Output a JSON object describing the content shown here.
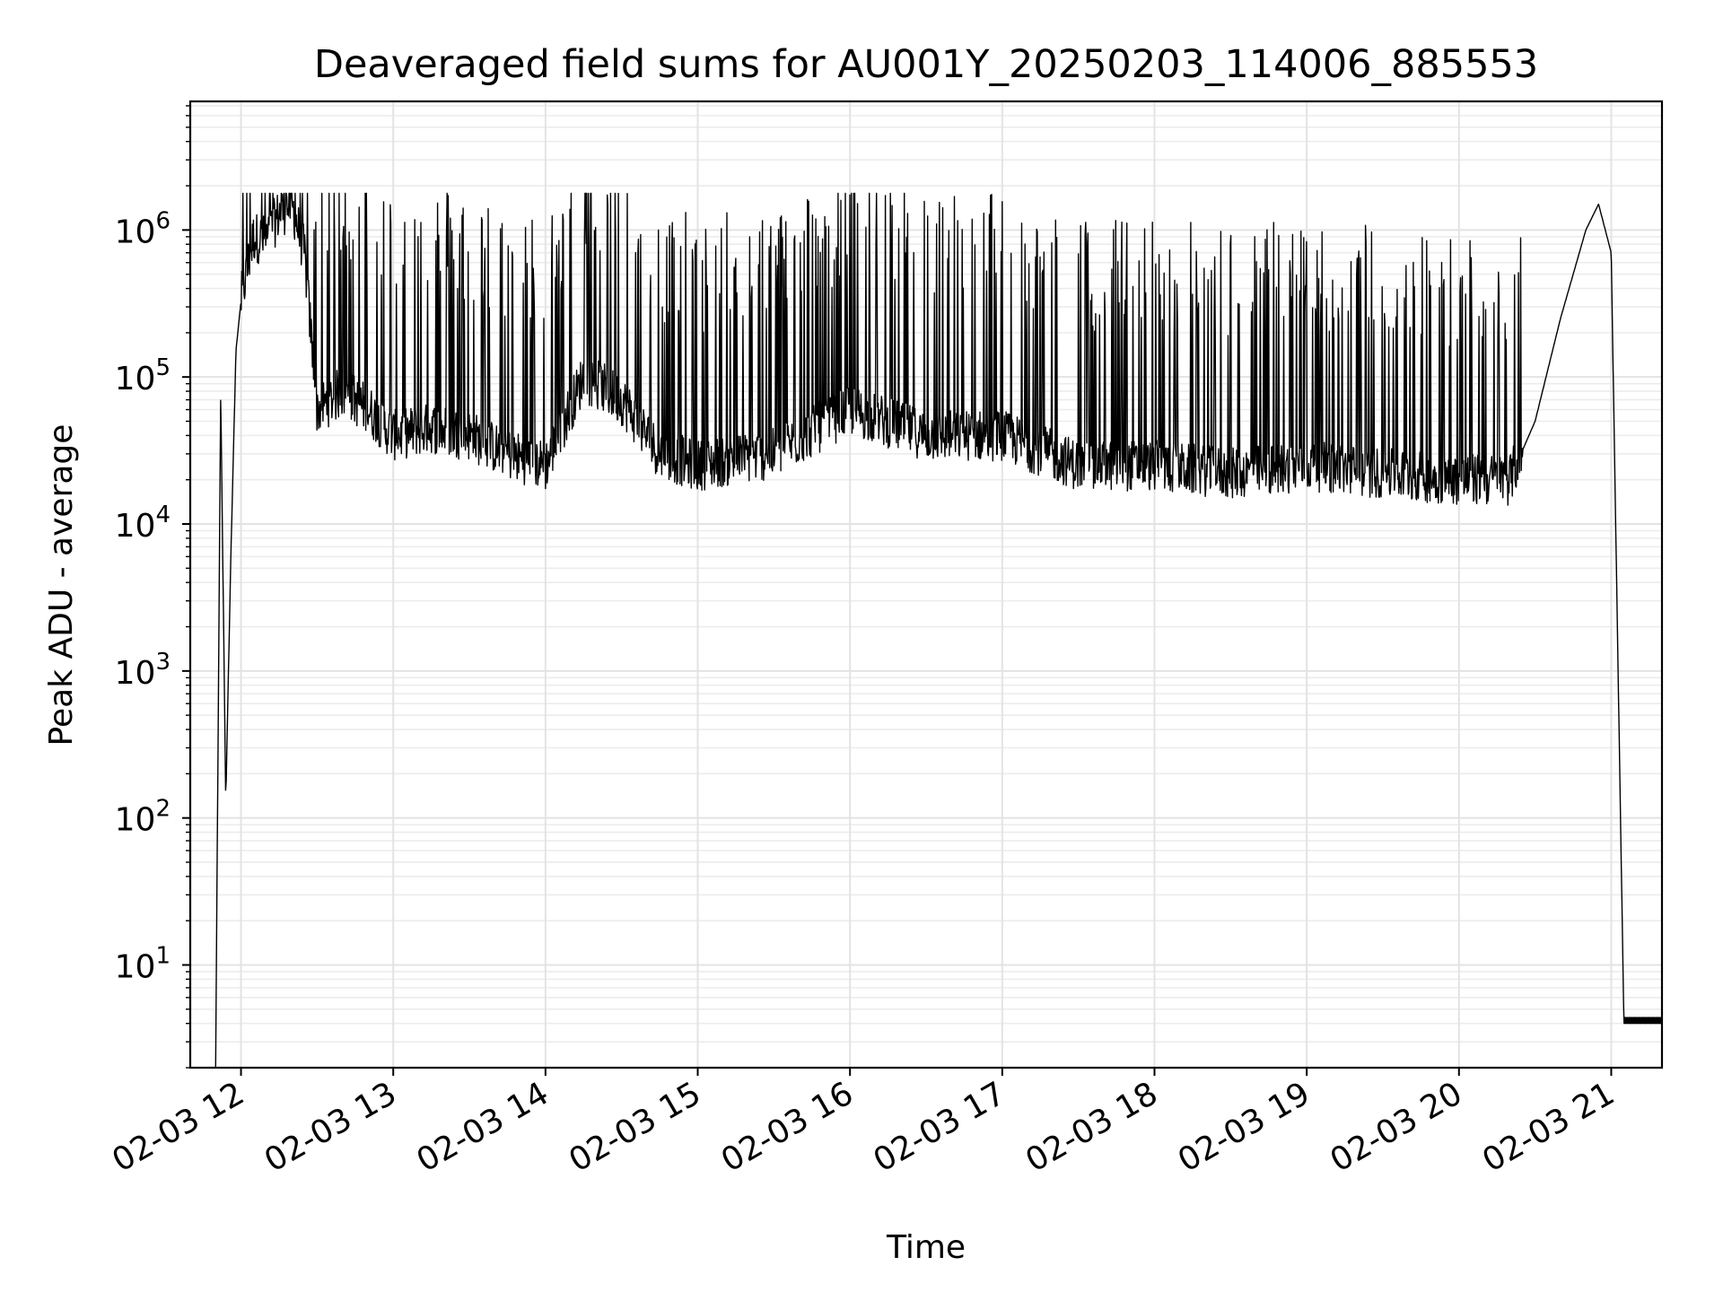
{
  "chart_data": {
    "type": "line",
    "title": "Deaveraged field sums for AU001Y_20250203_114006_885553",
    "xlabel": "Time",
    "ylabel": "Peak ADU - average",
    "yscale": "log",
    "ylim": [
      2,
      7500000
    ],
    "xlim": [
      "02-03 11:40",
      "02-03 21:20"
    ],
    "grid": true,
    "line_color": "#000000",
    "x_ticks": [
      "02-03 12",
      "02-03 13",
      "02-03 14",
      "02-03 15",
      "02-03 16",
      "02-03 17",
      "02-03 18",
      "02-03 19",
      "02-03 20",
      "02-03 21"
    ],
    "y_ticks": [
      {
        "base": "10",
        "exp": "1",
        "value": 10
      },
      {
        "base": "10",
        "exp": "2",
        "value": 100
      },
      {
        "base": "10",
        "exp": "3",
        "value": 1000
      },
      {
        "base": "10",
        "exp": "4",
        "value": 10000
      },
      {
        "base": "10",
        "exp": "5",
        "value": 100000
      },
      {
        "base": "10",
        "exp": "6",
        "value": 1000000
      }
    ],
    "series": [
      {
        "x": [
          "02-03 11:50",
          "02-03 11:52",
          "02-03 11:54",
          "02-03 11:56",
          "02-03 11:58",
          "02-03 12:00",
          "02-03 12:05",
          "02-03 12:10",
          "02-03 12:15",
          "02-03 12:20",
          "02-03 12:25",
          "02-03 12:30",
          "02-03 12:40",
          "02-03 12:50",
          "02-03 13:00",
          "02-03 13:15",
          "02-03 13:30",
          "02-03 13:45",
          "02-03 14:00",
          "02-03 14:15",
          "02-03 14:30",
          "02-03 14:45",
          "02-03 15:00",
          "02-03 15:30",
          "02-03 16:00",
          "02-03 16:30",
          "02-03 17:00",
          "02-03 17:30",
          "02-03 18:00",
          "02-03 18:30",
          "02-03 19:00",
          "02-03 19:30",
          "02-03 20:00",
          "02-03 20:20",
          "02-03 20:30",
          "02-03 20:40",
          "02-03 20:50",
          "02-03 20:55",
          "02-03 21:00",
          "02-03 21:05",
          "02-03 21:20"
        ],
        "y": [
          2,
          80000,
          130,
          6000,
          150000,
          330000,
          900000,
          850000,
          1300000,
          1500000,
          700000,
          60000,
          80000,
          60000,
          40000,
          45000,
          40000,
          30000,
          25000,
          100000,
          70000,
          30000,
          25000,
          30000,
          60000,
          40000,
          40000,
          25000,
          25000,
          22000,
          25000,
          22000,
          20000,
          20000,
          50000,
          250000,
          1000000,
          1500000,
          700000,
          4,
          4
        ]
      }
    ]
  }
}
